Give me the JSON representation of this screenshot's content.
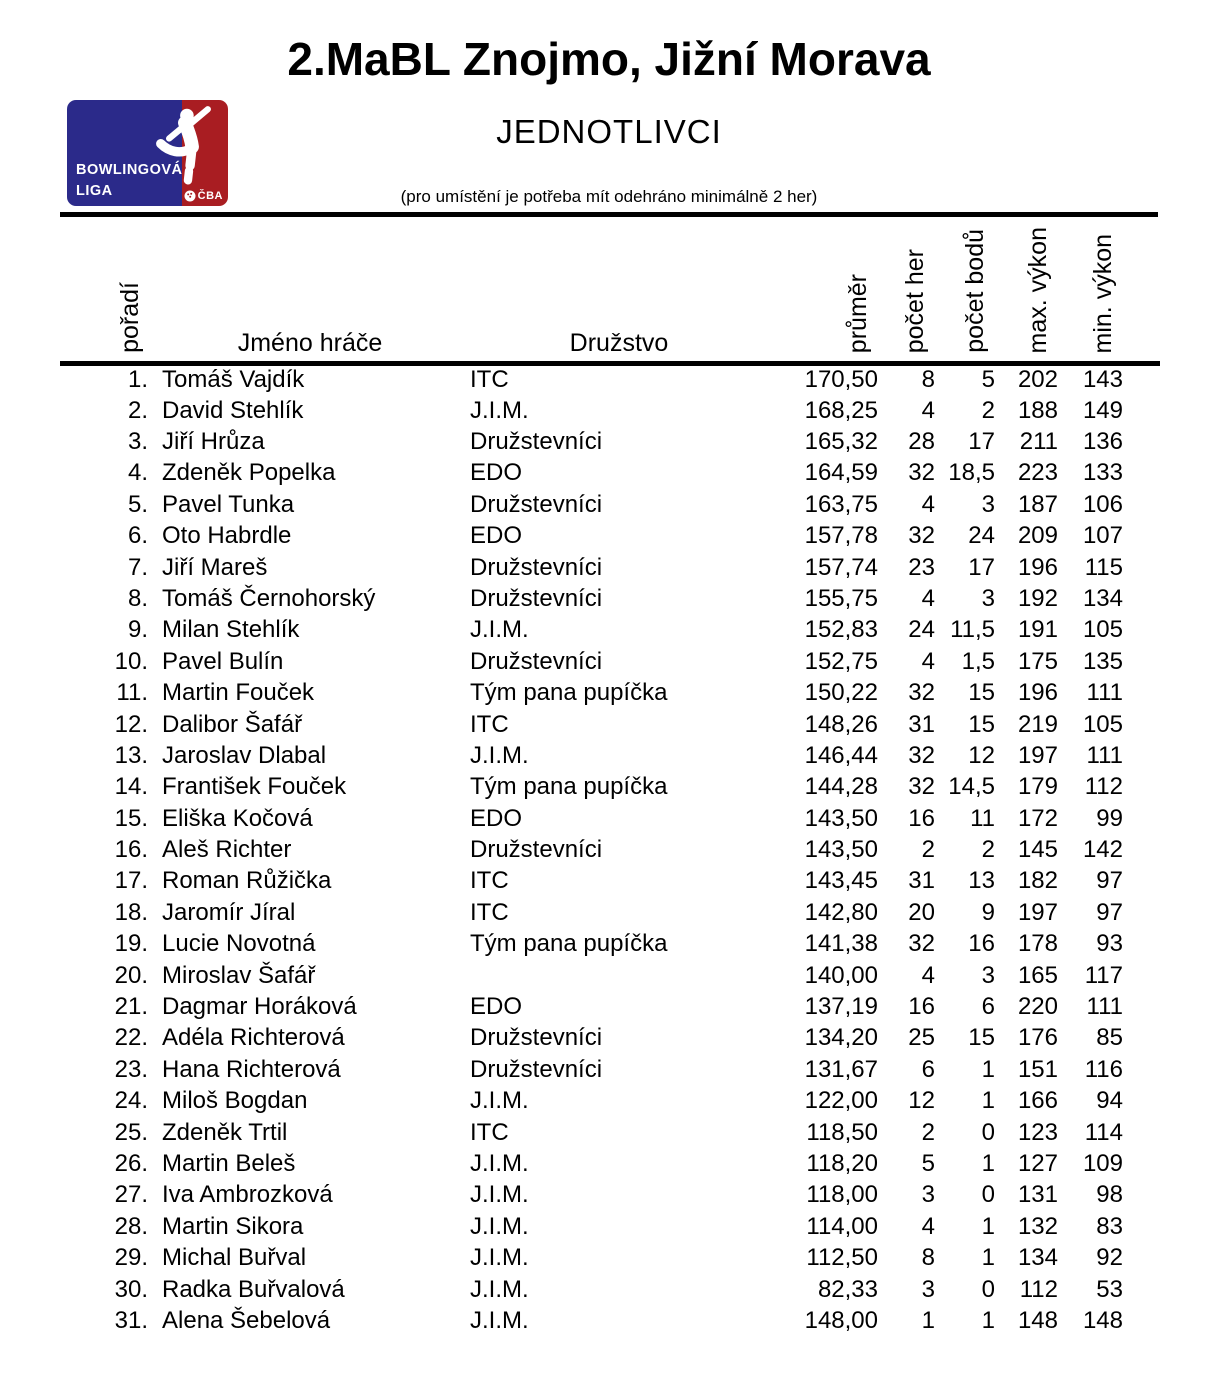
{
  "header": {
    "title": "2.MaBL Znojmo, Jižní Morava",
    "subtitle": "JEDNOTLIVCI",
    "note": "(pro umístění je potřeba mít odehráno minimálně 2 her)"
  },
  "logo": {
    "line1": "BOWLINGOVÁ",
    "line2": "LIGA",
    "cba_label": "ČBA",
    "colors": {
      "blue": "#2b2a8a",
      "red": "#a91d22",
      "figure": "#ffffff"
    }
  },
  "table": {
    "headers": {
      "rank": "pořadí",
      "name": "Jméno hráče",
      "team": "Družstvo",
      "avg": "průměr",
      "games": "počet her",
      "points": "počet bodů",
      "max": "max. výkon",
      "min": "min. výkon"
    },
    "rows": [
      {
        "rank": "1.",
        "name": "Tomáš Vajdík",
        "team": "ITC",
        "avg": "170,50",
        "games": "8",
        "points": "5",
        "max": "202",
        "min": "143"
      },
      {
        "rank": "2.",
        "name": "David Stehlík",
        "team": "J.I.M.",
        "avg": "168,25",
        "games": "4",
        "points": "2",
        "max": "188",
        "min": "149"
      },
      {
        "rank": "3.",
        "name": "Jiří Hrůza",
        "team": "Družstevníci",
        "avg": "165,32",
        "games": "28",
        "points": "17",
        "max": "211",
        "min": "136"
      },
      {
        "rank": "4.",
        "name": "Zdeněk Popelka",
        "team": "EDO",
        "avg": "164,59",
        "games": "32",
        "points": "18,5",
        "max": "223",
        "min": "133"
      },
      {
        "rank": "5.",
        "name": "Pavel Tunka",
        "team": "Družstevníci",
        "avg": "163,75",
        "games": "4",
        "points": "3",
        "max": "187",
        "min": "106"
      },
      {
        "rank": "6.",
        "name": "Oto Habrdle",
        "team": "EDO",
        "avg": "157,78",
        "games": "32",
        "points": "24",
        "max": "209",
        "min": "107"
      },
      {
        "rank": "7.",
        "name": "Jiří Mareš",
        "team": "Družstevníci",
        "avg": "157,74",
        "games": "23",
        "points": "17",
        "max": "196",
        "min": "115"
      },
      {
        "rank": "8.",
        "name": "Tomáš Černohorský",
        "team": "Družstevníci",
        "avg": "155,75",
        "games": "4",
        "points": "3",
        "max": "192",
        "min": "134"
      },
      {
        "rank": "9.",
        "name": "Milan Stehlík",
        "team": "J.I.M.",
        "avg": "152,83",
        "games": "24",
        "points": "11,5",
        "max": "191",
        "min": "105"
      },
      {
        "rank": "10.",
        "name": "Pavel Bulín",
        "team": "Družstevníci",
        "avg": "152,75",
        "games": "4",
        "points": "1,5",
        "max": "175",
        "min": "135"
      },
      {
        "rank": "11.",
        "name": "Martin Fouček",
        "team": "Tým pana pupíčka",
        "avg": "150,22",
        "games": "32",
        "points": "15",
        "max": "196",
        "min": "111"
      },
      {
        "rank": "12.",
        "name": "Dalibor Šafář",
        "team": "ITC",
        "avg": "148,26",
        "games": "31",
        "points": "15",
        "max": "219",
        "min": "105"
      },
      {
        "rank": "13.",
        "name": "Jaroslav Dlabal",
        "team": "J.I.M.",
        "avg": "146,44",
        "games": "32",
        "points": "12",
        "max": "197",
        "min": "111"
      },
      {
        "rank": "14.",
        "name": "František Fouček",
        "team": "Tým pana pupíčka",
        "avg": "144,28",
        "games": "32",
        "points": "14,5",
        "max": "179",
        "min": "112"
      },
      {
        "rank": "15.",
        "name": "Eliška Kočová",
        "team": "EDO",
        "avg": "143,50",
        "games": "16",
        "points": "11",
        "max": "172",
        "min": "99"
      },
      {
        "rank": "16.",
        "name": "Aleš Richter",
        "team": "Družstevníci",
        "avg": "143,50",
        "games": "2",
        "points": "2",
        "max": "145",
        "min": "142"
      },
      {
        "rank": "17.",
        "name": "Roman Růžička",
        "team": "ITC",
        "avg": "143,45",
        "games": "31",
        "points": "13",
        "max": "182",
        "min": "97"
      },
      {
        "rank": "18.",
        "name": "Jaromír Jíral",
        "team": "ITC",
        "avg": "142,80",
        "games": "20",
        "points": "9",
        "max": "197",
        "min": "97"
      },
      {
        "rank": "19.",
        "name": "Lucie Novotná",
        "team": "Tým pana pupíčka",
        "avg": "141,38",
        "games": "32",
        "points": "16",
        "max": "178",
        "min": "93"
      },
      {
        "rank": "20.",
        "name": "Miroslav Šafář",
        "team": "",
        "avg": "140,00",
        "games": "4",
        "points": "3",
        "max": "165",
        "min": "117"
      },
      {
        "rank": "21.",
        "name": "Dagmar Horáková",
        "team": "EDO",
        "avg": "137,19",
        "games": "16",
        "points": "6",
        "max": "220",
        "min": "111"
      },
      {
        "rank": "22.",
        "name": "Adéla Richterová",
        "team": "Družstevníci",
        "avg": "134,20",
        "games": "25",
        "points": "15",
        "max": "176",
        "min": "85"
      },
      {
        "rank": "23.",
        "name": "Hana Richterová",
        "team": "Družstevníci",
        "avg": "131,67",
        "games": "6",
        "points": "1",
        "max": "151",
        "min": "116"
      },
      {
        "rank": "24.",
        "name": "Miloš Bogdan",
        "team": "J.I.M.",
        "avg": "122,00",
        "games": "12",
        "points": "1",
        "max": "166",
        "min": "94"
      },
      {
        "rank": "25.",
        "name": "Zdeněk Trtil",
        "team": "ITC",
        "avg": "118,50",
        "games": "2",
        "points": "0",
        "max": "123",
        "min": "114"
      },
      {
        "rank": "26.",
        "name": "Martin Beleš",
        "team": "J.I.M.",
        "avg": "118,20",
        "games": "5",
        "points": "1",
        "max": "127",
        "min": "109"
      },
      {
        "rank": "27.",
        "name": "Iva Ambrozková",
        "team": "J.I.M.",
        "avg": "118,00",
        "games": "3",
        "points": "0",
        "max": "131",
        "min": "98"
      },
      {
        "rank": "28.",
        "name": "Martin Sikora",
        "team": "J.I.M.",
        "avg": "114,00",
        "games": "4",
        "points": "1",
        "max": "132",
        "min": "83"
      },
      {
        "rank": "29.",
        "name": "Michal Buřval",
        "team": "J.I.M.",
        "avg": "112,50",
        "games": "8",
        "points": "1",
        "max": "134",
        "min": "92"
      },
      {
        "rank": "30.",
        "name": "Radka Buřvalová",
        "team": "J.I.M.",
        "avg": "82,33",
        "games": "3",
        "points": "0",
        "max": "112",
        "min": "53"
      },
      {
        "rank": "31.",
        "name": "Alena Šebelová",
        "team": "J.I.M.",
        "avg": "148,00",
        "games": "1",
        "points": "1",
        "max": "148",
        "min": "148"
      }
    ]
  }
}
